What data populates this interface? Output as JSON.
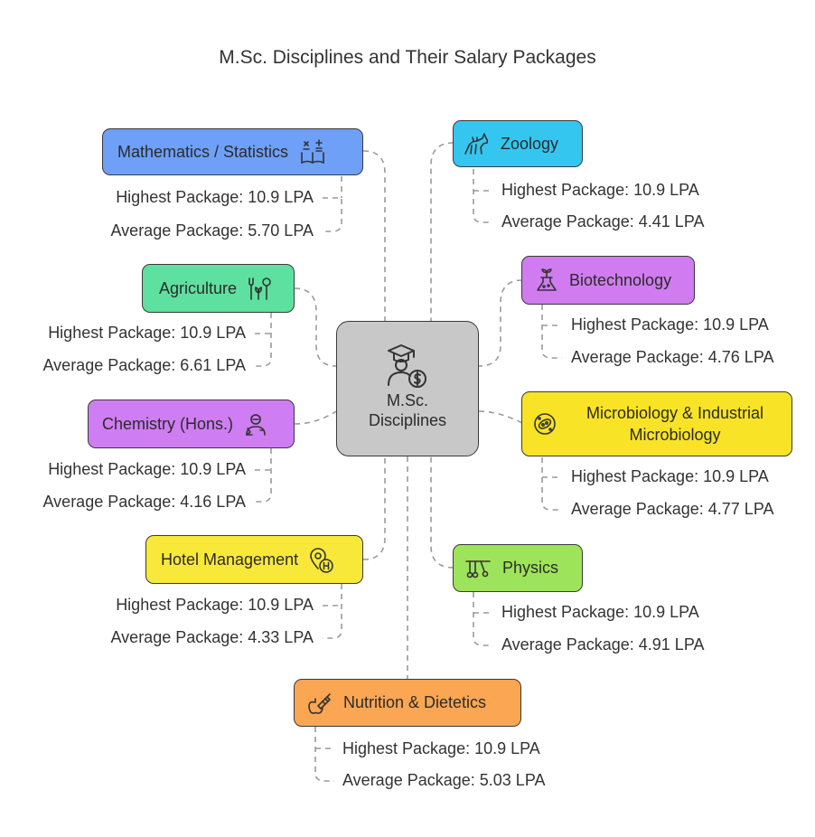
{
  "title": "M.Sc. Disciplines and Their Salary Packages",
  "center": {
    "line1": "M.Sc.",
    "line2": "Disciplines",
    "icon": "graduate-money-icon",
    "color": "#c8c8c8"
  },
  "disciplines": [
    {
      "id": "math",
      "name": "Mathematics / Statistics",
      "icon": "math-book-icon",
      "color": "#6ea0f7",
      "highest": "Highest Package: 10.9 LPA",
      "average": "Average Package: 5.70 LPA"
    },
    {
      "id": "zoology",
      "name": "Zoology",
      "icon": "animal-icon",
      "color": "#35c6f0",
      "highest": "Highest Package: 10.9 LPA",
      "average": "Average Package: 4.41 LPA"
    },
    {
      "id": "agri",
      "name": "Agriculture",
      "icon": "farming-tools-icon",
      "color": "#5ee0a0",
      "highest": "Highest Package: 10.9 LPA",
      "average": "Average Package: 6.61 LPA"
    },
    {
      "id": "biotech",
      "name": "Biotechnology",
      "icon": "flask-plant-icon",
      "color": "#d07cf0",
      "highest": "Highest Package: 10.9 LPA",
      "average": "Average Package: 4.76 LPA"
    },
    {
      "id": "chem",
      "name": "Chemistry (Hons.)",
      "icon": "scientist-icon",
      "color": "#cf7df2",
      "highest": "Highest Package: 10.9 LPA",
      "average": "Average Package: 4.16 LPA"
    },
    {
      "id": "micro",
      "name_line1": "Microbiology & Industrial",
      "name_line2": "Microbiology",
      "icon": "microbe-icon",
      "color": "#f8e327",
      "highest": "Highest Package: 10.9 LPA",
      "average": "Average Package: 4.77 LPA"
    },
    {
      "id": "hotel",
      "name": "Hotel Management",
      "icon": "hotel-location-icon",
      "color": "#f8e83a",
      "highest": "Highest Package: 10.9 LPA",
      "average": "Average Package: 4.33 LPA"
    },
    {
      "id": "physics",
      "name": "Physics",
      "icon": "pendulum-icon",
      "color": "#9ee45a",
      "highest": "Highest Package: 10.9 LPA",
      "average": "Average Package: 4.91 LPA"
    },
    {
      "id": "nutrition",
      "name": "Nutrition & Dietetics",
      "icon": "syringe-apple-icon",
      "color": "#fba652",
      "highest": "Highest Package: 10.9 LPA",
      "average": "Average Package: 5.03 LPA"
    }
  ]
}
